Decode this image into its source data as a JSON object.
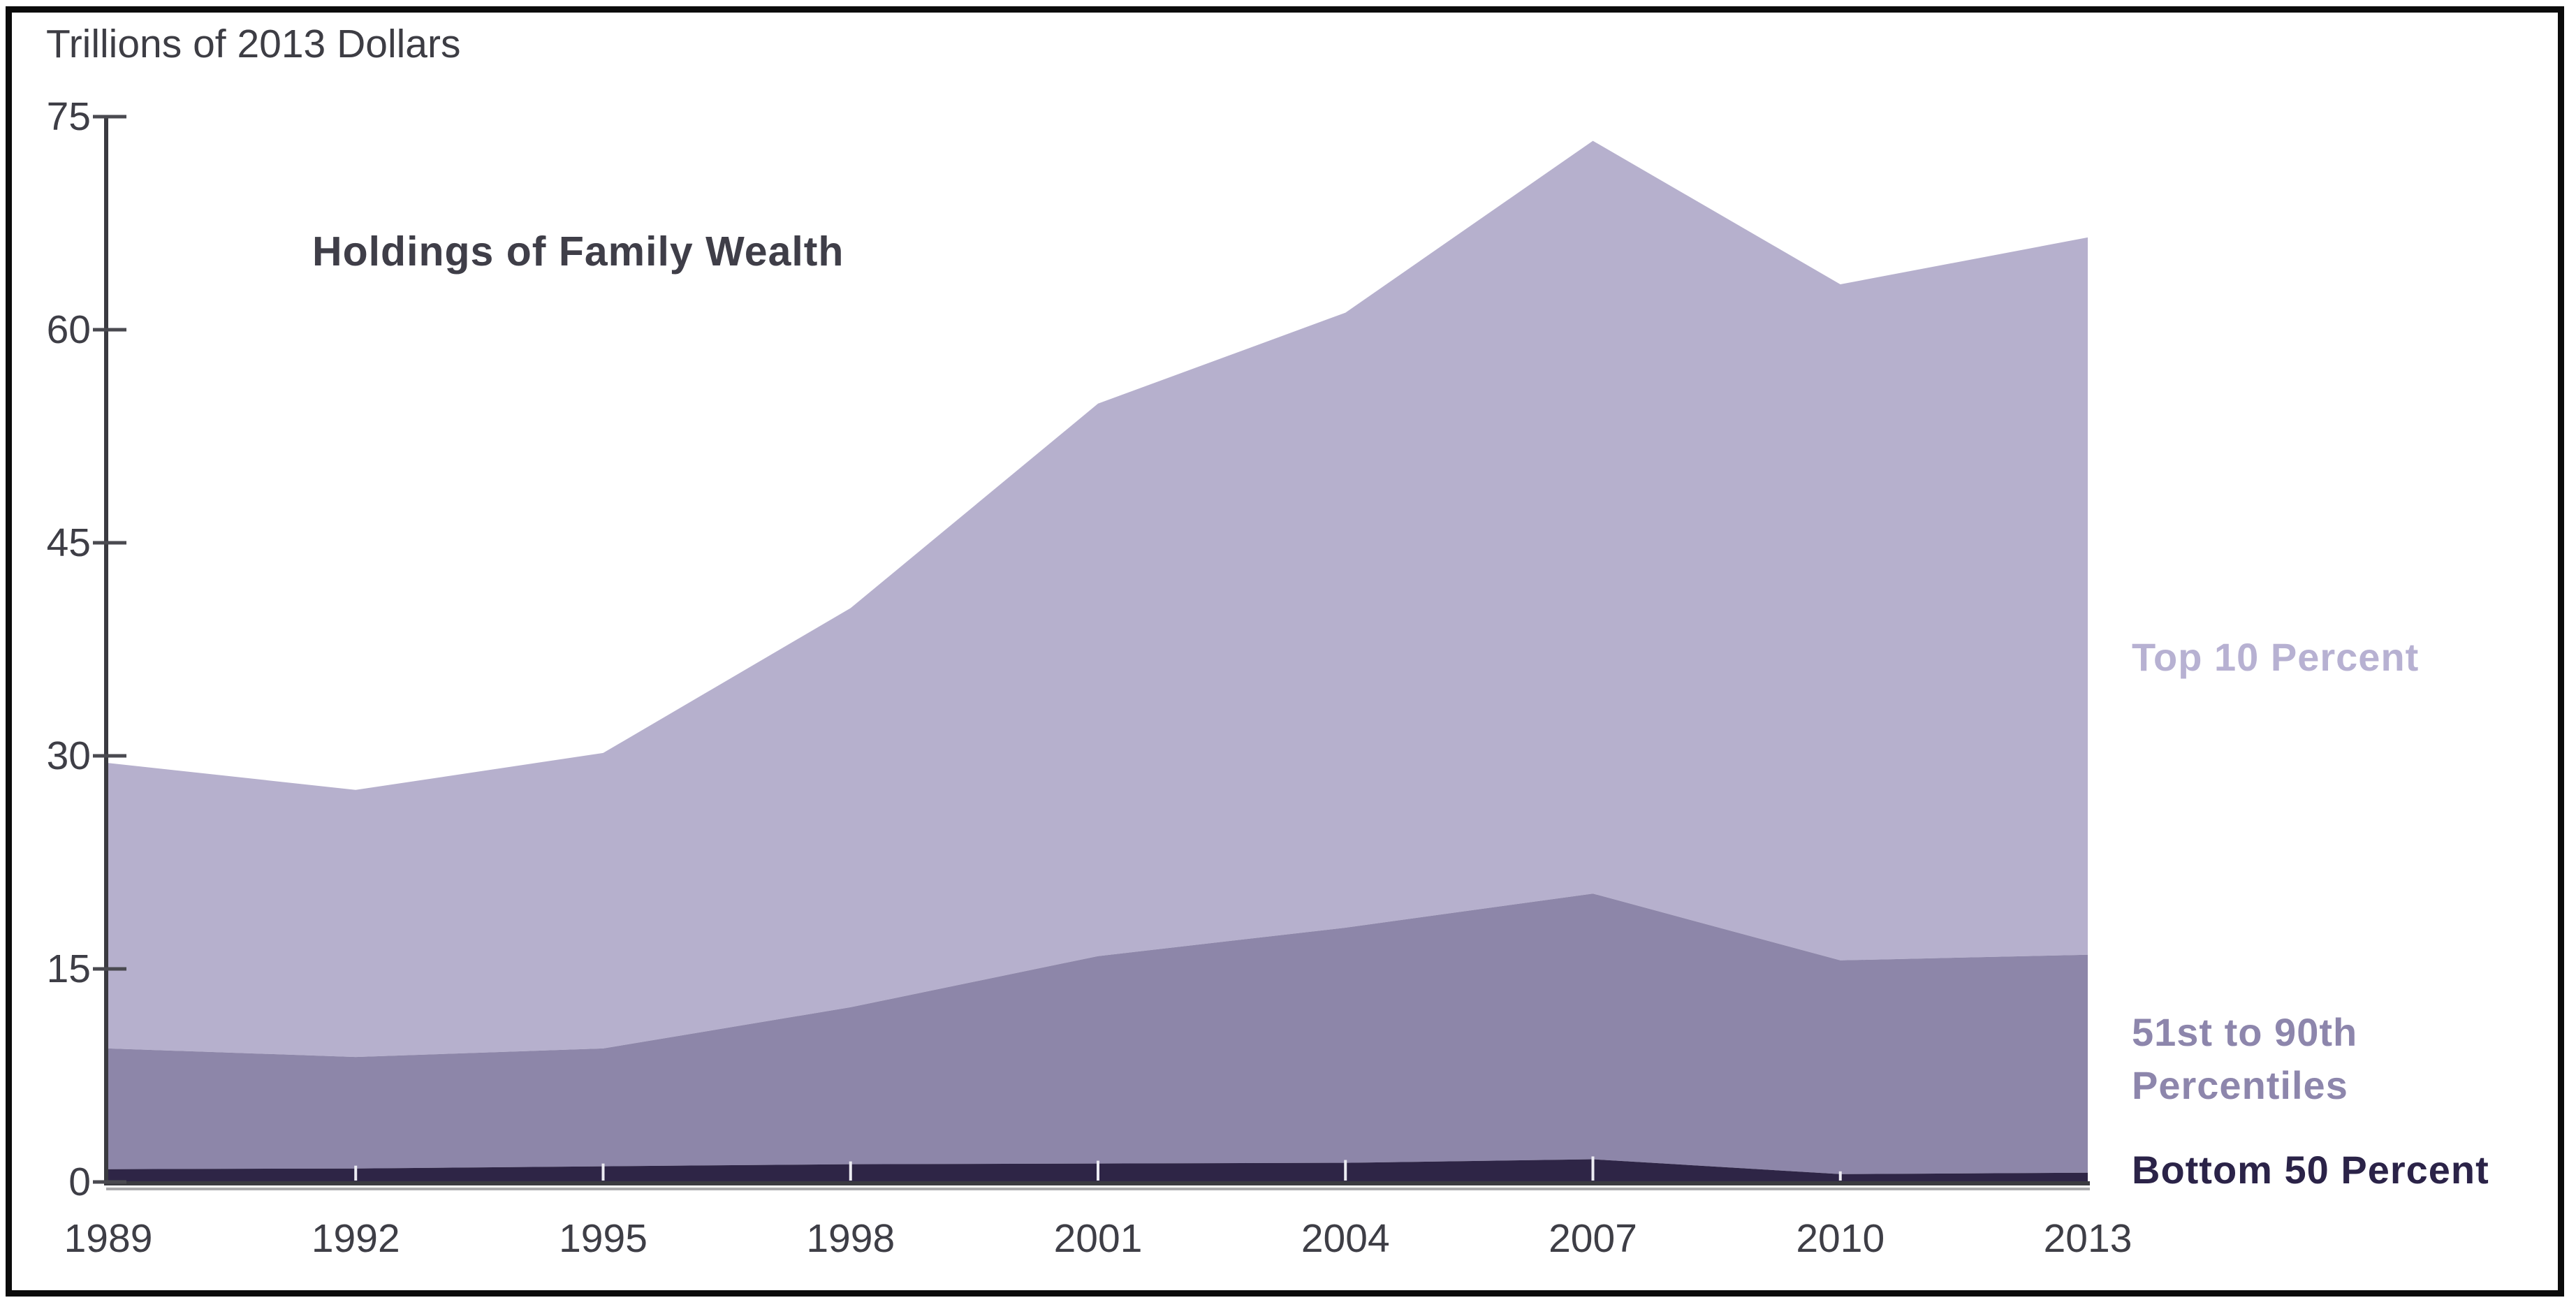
{
  "chart": {
    "unit_label": "Trillions of 2013 Dollars",
    "title": "Holdings of Family Wealth",
    "legend": {
      "top10": "Top 10 Percent",
      "mid_line1": "51st to 90th",
      "mid_line2": "Percentiles",
      "bottom50": "Bottom 50 Percent"
    }
  },
  "chart_data": {
    "type": "area",
    "stacked": true,
    "title": "Holdings of Family Wealth",
    "ylabel": "Trillions of 2013 Dollars",
    "x": [
      1989,
      1992,
      1995,
      1998,
      2001,
      2004,
      2007,
      2010,
      2013
    ],
    "x_tick_labels": [
      "1989",
      "1992",
      "1995",
      "1998",
      "2001",
      "2004",
      "2007",
      "2010",
      "2013"
    ],
    "y_ticks": [
      0,
      15,
      30,
      45,
      60,
      75
    ],
    "y_tick_labels": [
      "0",
      "15",
      "30",
      "45",
      "60",
      "75"
    ],
    "ylim": [
      0,
      75
    ],
    "grid": false,
    "legend_position": "right",
    "series": [
      {
        "name": "Bottom 50 Percent",
        "color": "#2e2546",
        "label_color": "#2b2348",
        "values": [
          0.9,
          0.95,
          1.1,
          1.25,
          1.3,
          1.35,
          1.6,
          0.55,
          0.65
        ]
      },
      {
        "name": "51st to 90th Percentiles",
        "color": "#8d86a9",
        "label_color": "#8d86ac",
        "values": [
          8.5,
          7.85,
          8.3,
          11.05,
          14.6,
          16.55,
          18.7,
          15.05,
          15.35
        ]
      },
      {
        "name": "Top 10 Percent",
        "color": "#b6b0cd",
        "label_color": "#b7b1d2",
        "values": [
          20.1,
          18.8,
          20.8,
          28.1,
          38.9,
          43.3,
          53.0,
          47.6,
          50.5
        ]
      }
    ],
    "cumulative_boundaries": {
      "bottom_50_top": [
        0.9,
        0.95,
        1.1,
        1.25,
        1.3,
        1.35,
        1.6,
        0.55,
        0.65
      ],
      "p51_90_top": [
        9.4,
        8.8,
        9.4,
        12.3,
        15.9,
        17.9,
        20.3,
        15.6,
        16.0
      ],
      "total": [
        29.5,
        27.6,
        30.2,
        40.4,
        54.8,
        61.2,
        73.3,
        63.2,
        66.5
      ]
    },
    "axis_color": "#3a3a40",
    "tick_color": "#4a4a50",
    "year_notch_color": "#ececf2",
    "axis_shadow_color": "#aaaaad"
  }
}
